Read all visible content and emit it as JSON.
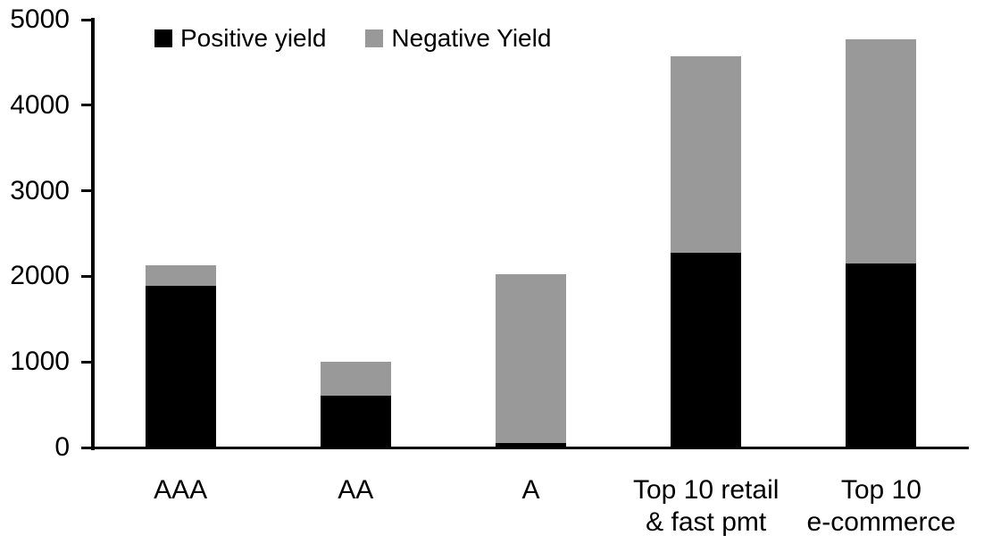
{
  "chart_data": {
    "type": "bar",
    "stacked": true,
    "title": "",
    "xlabel": "",
    "ylabel": "",
    "categories": [
      "AAA",
      "AA",
      "A",
      "Top 10 retail\n& fast pmt",
      "Top 10\ne-commerce"
    ],
    "series": [
      {
        "name": "Positive yield",
        "color": "#000000",
        "values": [
          1890,
          610,
          50,
          2280,
          2150
        ]
      },
      {
        "name": "Negative Yield",
        "color": "#999999",
        "values": [
          240,
          390,
          1975,
          2290,
          2620
        ]
      }
    ],
    "ylim": [
      0,
      5000
    ],
    "yticks": [
      0,
      1000,
      2000,
      3000,
      4000,
      5000
    ],
    "grid": false,
    "legend_position": "top",
    "axis_color": "#000000",
    "background_color": "#ffffff"
  }
}
